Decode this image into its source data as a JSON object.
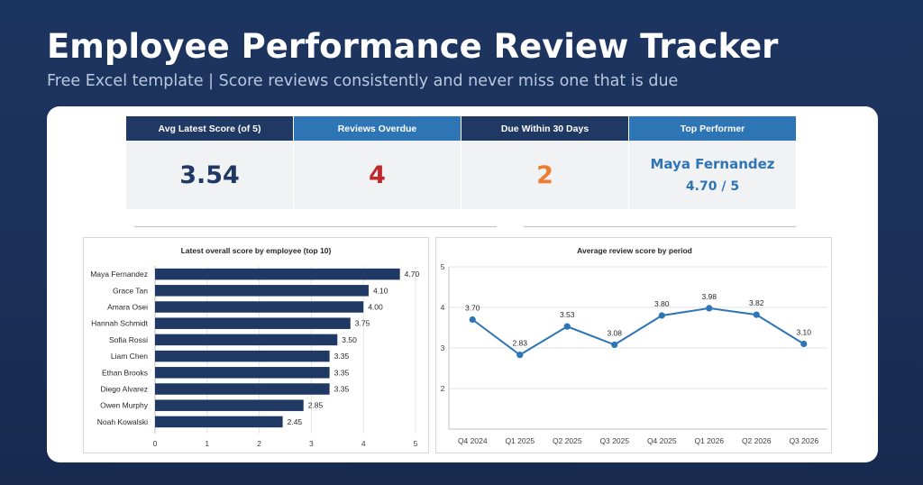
{
  "hero": {
    "title": "Employee Performance Review Tracker",
    "subtitle": "Free Excel template  |  Score reviews consistently and never miss one that is due"
  },
  "kpis": [
    {
      "label": "Avg Latest Score (of 5)",
      "value": "3.54",
      "header_color": "#1f3864",
      "value_color": "#1f3864"
    },
    {
      "label": "Reviews Overdue",
      "value": "4",
      "header_color": "#2e75b6",
      "value_color": "#c0282d"
    },
    {
      "label": "Due Within 30 Days",
      "value": "2",
      "header_color": "#1f3864",
      "value_color": "#ed7d31"
    },
    {
      "label": "Top Performer",
      "name": "Maya Fernandez",
      "score": "4.70 / 5",
      "header_color": "#2e75b6",
      "value_color": "#2e75b6"
    }
  ],
  "chart_data": [
    {
      "type": "bar",
      "orientation": "horizontal",
      "title": "Latest overall score by employee (top 10)",
      "categories": [
        "Maya Fernandez",
        "Grace Tan",
        "Amara Osei",
        "Hannah Schmidt",
        "Sofia Rossi",
        "Liam Chen",
        "Ethan Brooks",
        "Diego Alvarez",
        "Owen Murphy",
        "Noah Kowalski"
      ],
      "values": [
        4.7,
        4.1,
        4.0,
        3.75,
        3.5,
        3.35,
        3.35,
        3.35,
        2.85,
        2.45
      ],
      "labels": [
        "4.70",
        "4.10",
        "4.00",
        "3.75",
        "3.50",
        "3.35",
        "3.35",
        "3.35",
        "2.85",
        "2.45"
      ],
      "xlim": [
        0,
        5
      ],
      "xticks": [
        "0",
        "1",
        "2",
        "3",
        "4",
        "5"
      ],
      "grid": true,
      "color": "#1f3864"
    },
    {
      "type": "line",
      "title": "Average review score by period",
      "categories": [
        "Q4 2024",
        "Q1 2025",
        "Q2 2025",
        "Q3 2025",
        "Q4 2025",
        "Q1 2026",
        "Q2 2026",
        "Q3 2026"
      ],
      "values": [
        3.7,
        2.83,
        3.53,
        3.08,
        3.8,
        3.98,
        3.82,
        3.1
      ],
      "labels": [
        "3.70",
        "2.83",
        "3.53",
        "3.08",
        "3.80",
        "3.98",
        "3.82",
        "3.10"
      ],
      "ylim": [
        1,
        5
      ],
      "yticks": [
        "2",
        "3",
        "4",
        "5"
      ],
      "grid": true,
      "color": "#2e75b6"
    }
  ]
}
